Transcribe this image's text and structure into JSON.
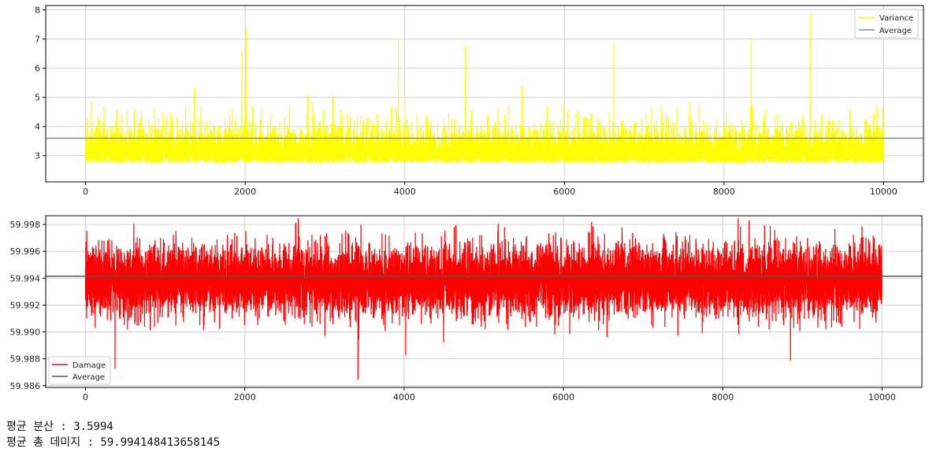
{
  "chart_data": [
    {
      "type": "line",
      "xlim": [
        -500,
        10500
      ],
      "ylim": [
        2.1,
        8.15
      ],
      "x_ticks": [
        0,
        2000,
        4000,
        6000,
        8000,
        10000
      ],
      "y_ticks": [
        3,
        4,
        5,
        6,
        7,
        8
      ],
      "x_tick_labels": [
        "0",
        "2000",
        "4000",
        "6000",
        "8000",
        "10000"
      ],
      "y_tick_labels": [
        "3",
        "4",
        "5",
        "6",
        "7",
        "8"
      ],
      "grid": true,
      "legend_placement": "top-right",
      "series": [
        {
          "name": "Variance",
          "color": "#ffff00",
          "kind": "noise",
          "n_points": 10000,
          "typical_range": [
            2.6,
            4.8
          ],
          "min": 2.35,
          "max": 7.85,
          "peaks": [
            [
              2010,
              7.35
            ],
            [
              9080,
              7.85
            ],
            [
              8340,
              7.05
            ],
            [
              1960,
              6.6
            ],
            [
              3920,
              6.95
            ],
            [
              4760,
              6.75
            ],
            [
              6620,
              6.85
            ]
          ]
        },
        {
          "name": "Average",
          "color": "#888888",
          "kind": "constant",
          "value": 3.5994
        }
      ]
    },
    {
      "type": "line",
      "xlim": [
        -500,
        10500
      ],
      "ylim": [
        59.98587,
        59.99865
      ],
      "x_ticks": [
        0,
        2000,
        4000,
        6000,
        8000,
        10000
      ],
      "y_ticks": [
        59.986,
        59.988,
        59.99,
        59.992,
        59.994,
        59.996,
        59.998
      ],
      "x_tick_labels": [
        "0",
        "2000",
        "4000",
        "6000",
        "8000",
        "10000"
      ],
      "y_tick_labels": [
        "59.986",
        "59.988",
        "59.990",
        "59.992",
        "59.994",
        "59.996",
        "59.998"
      ],
      "grid": true,
      "legend_placement": "bottom-left",
      "series": [
        {
          "name": "Damage",
          "color": "#ff0000",
          "kind": "noise",
          "n_points": 10000,
          "typical_range": [
            59.9905,
            59.9972
          ],
          "min": 59.9865,
          "max": 59.9985,
          "troughs": [
            [
              3420,
              59.9865
            ],
            [
              370,
              59.9873
            ],
            [
              8850,
              59.9879
            ],
            [
              4020,
              59.9883
            ]
          ]
        },
        {
          "name": "Average",
          "color": "#555555",
          "kind": "constant",
          "value": 59.994148413658145
        }
      ]
    }
  ],
  "output": {
    "line1": "평균 분산 : 3.5994",
    "line2": "평균 총 데미지 : 59.994148413658145"
  }
}
